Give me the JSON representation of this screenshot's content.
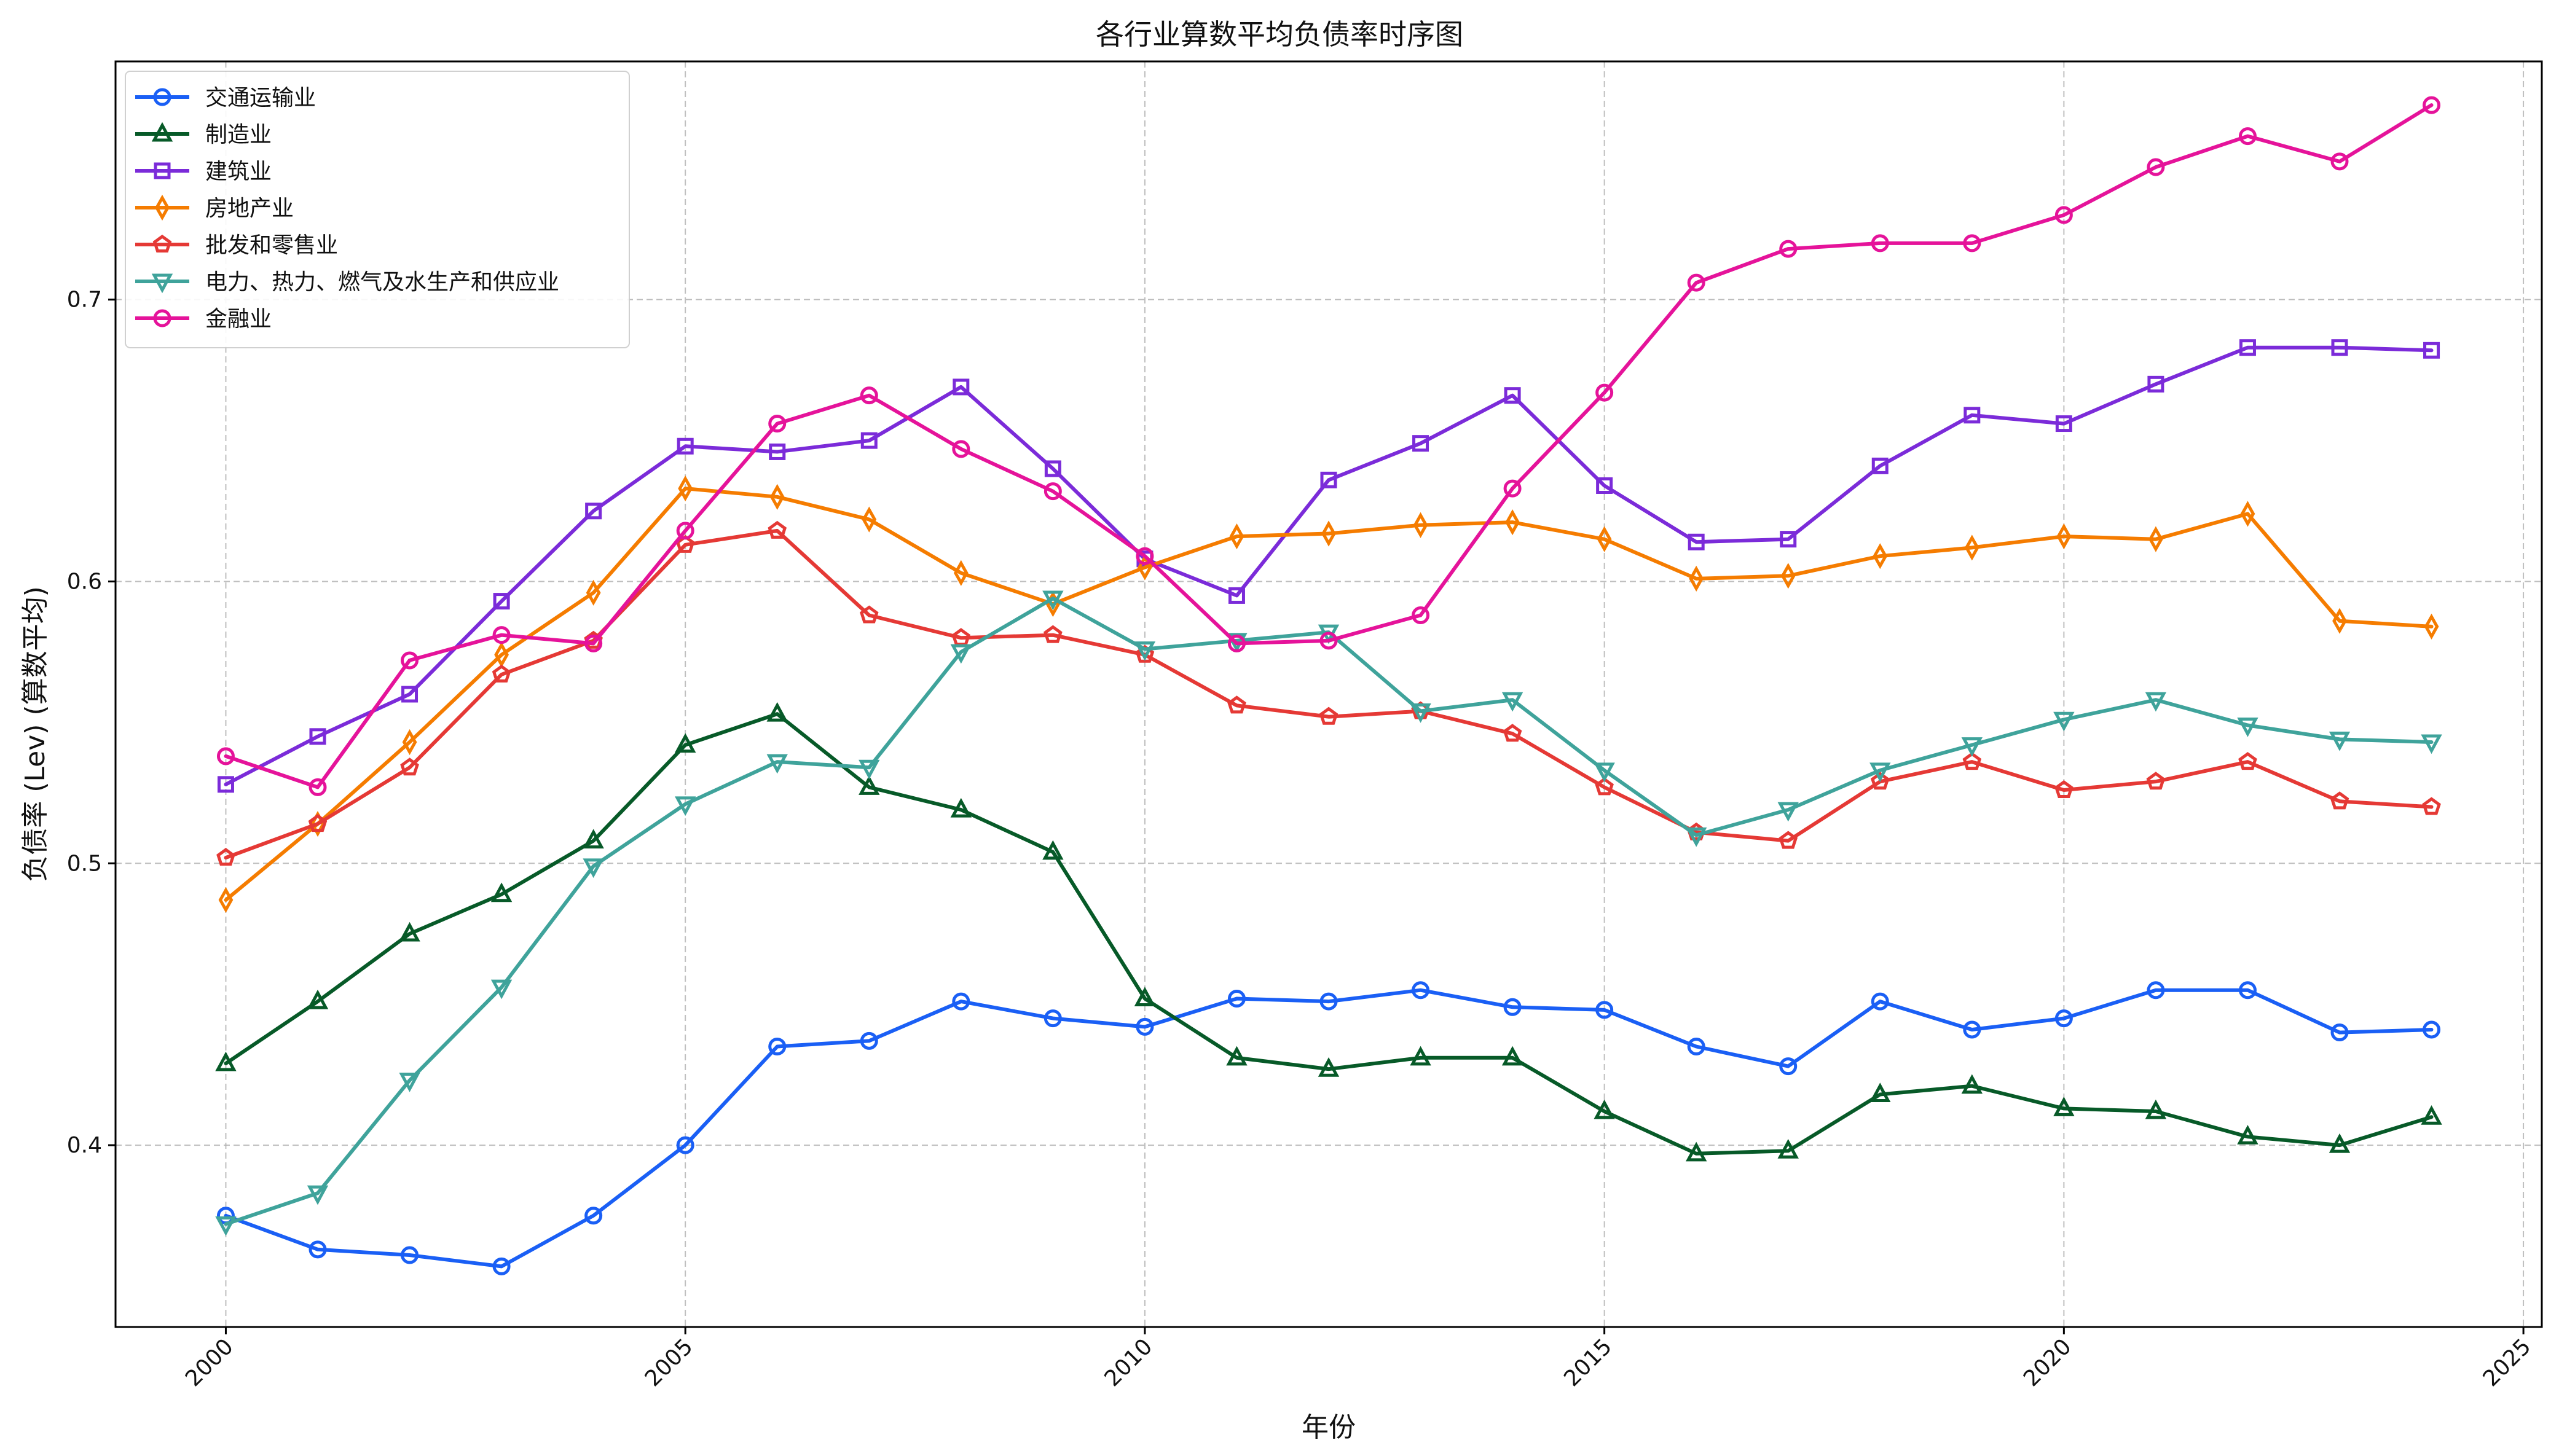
{
  "chart_data": {
    "type": "line",
    "title": "各行业算数平均负债率时序图",
    "xlabel": "年份",
    "ylabel": "负债率 (Lev) (算数平均)",
    "xlim": [
      1998.8,
      2025.2
    ],
    "ylim": [
      0.3355,
      0.7845
    ],
    "x_ticks": [
      2000,
      2005,
      2010,
      2015,
      2020,
      2025
    ],
    "x_tick_labels": [
      "2000",
      "2005",
      "2010",
      "2015",
      "2020",
      "2025"
    ],
    "y_ticks": [
      0.4,
      0.5,
      0.6,
      0.7
    ],
    "y_tick_labels": [
      "0.4",
      "0.5",
      "0.6",
      "0.7"
    ],
    "grid": true,
    "legend_position": "top-left",
    "x": [
      2000,
      2001,
      2002,
      2003,
      2004,
      2005,
      2006,
      2007,
      2008,
      2009,
      2010,
      2011,
      2012,
      2013,
      2014,
      2015,
      2016,
      2017,
      2018,
      2019,
      2020,
      2021,
      2022,
      2023,
      2024
    ],
    "series": [
      {
        "name": "交通运输业",
        "color": "#1a5ff5",
        "marker": "circle",
        "values": [
          0.375,
          0.363,
          0.361,
          0.357,
          0.375,
          0.4,
          0.435,
          0.437,
          0.451,
          0.445,
          0.442,
          0.452,
          0.451,
          0.455,
          0.449,
          0.448,
          0.435,
          0.428,
          0.451,
          0.441,
          0.445,
          0.455,
          0.455,
          0.44,
          0.441
        ]
      },
      {
        "name": "制造业",
        "color": "#075a28",
        "marker": "triangle-up",
        "values": [
          0.429,
          0.451,
          0.475,
          0.489,
          0.508,
          0.542,
          0.553,
          0.527,
          0.519,
          0.504,
          0.452,
          0.431,
          0.427,
          0.431,
          0.431,
          0.412,
          0.397,
          0.398,
          0.418,
          0.421,
          0.413,
          0.412,
          0.403,
          0.4,
          0.41
        ]
      },
      {
        "name": "建筑业",
        "color": "#7b2bd9",
        "marker": "square",
        "values": [
          0.528,
          0.545,
          0.56,
          0.593,
          0.625,
          0.648,
          0.646,
          0.65,
          0.669,
          0.64,
          0.608,
          0.595,
          0.636,
          0.649,
          0.666,
          0.634,
          0.614,
          0.615,
          0.641,
          0.659,
          0.656,
          0.67,
          0.683,
          0.683,
          0.682
        ]
      },
      {
        "name": "房地产业",
        "color": "#f57c00",
        "marker": "thin-diamond",
        "values": [
          0.487,
          0.514,
          0.543,
          0.574,
          0.596,
          0.633,
          0.63,
          0.622,
          0.603,
          0.592,
          0.605,
          0.616,
          0.617,
          0.62,
          0.621,
          0.615,
          0.601,
          0.602,
          0.609,
          0.612,
          0.616,
          0.615,
          0.624,
          0.586,
          0.584
        ]
      },
      {
        "name": "批发和零售业",
        "color": "#e53935",
        "marker": "pentagon",
        "values": [
          0.502,
          0.514,
          0.534,
          0.567,
          0.579,
          0.613,
          0.618,
          0.588,
          0.58,
          0.581,
          0.574,
          0.556,
          0.552,
          0.554,
          0.546,
          0.527,
          0.511,
          0.508,
          0.529,
          0.536,
          0.526,
          0.529,
          0.536,
          0.522,
          0.52
        ]
      },
      {
        "name": "电力、热力、燃气及水生产和供应业",
        "color": "#3fa39b",
        "marker": "triangle-down",
        "values": [
          0.372,
          0.383,
          0.423,
          0.456,
          0.499,
          0.521,
          0.536,
          0.534,
          0.575,
          0.594,
          0.576,
          0.579,
          0.582,
          0.554,
          0.558,
          0.533,
          0.51,
          0.519,
          0.533,
          0.542,
          0.551,
          0.558,
          0.549,
          0.544,
          0.543
        ]
      },
      {
        "name": "金融业",
        "color": "#e5139a",
        "marker": "circle",
        "values": [
          0.538,
          0.527,
          0.572,
          0.581,
          0.578,
          0.618,
          0.656,
          0.666,
          0.647,
          0.632,
          0.609,
          0.578,
          0.579,
          0.588,
          0.633,
          0.667,
          0.706,
          0.718,
          0.72,
          0.72,
          0.73,
          0.747,
          0.758,
          0.749,
          0.769
        ]
      }
    ]
  }
}
